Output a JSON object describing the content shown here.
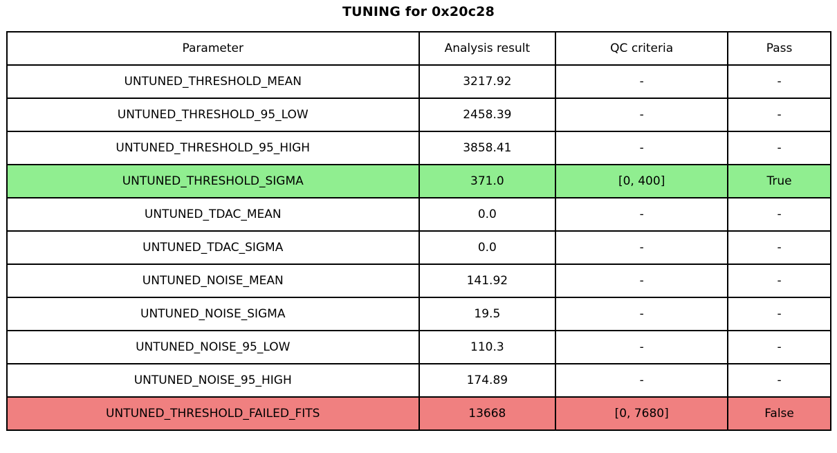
{
  "title": "TUNING for 0x20c28",
  "colors": {
    "pass_row": "#90EE90",
    "fail_row": "#F08080",
    "border": "#000000",
    "background": "#FFFFFF",
    "text": "#000000"
  },
  "chart_data": {
    "type": "table",
    "title": "TUNING for 0x20c28",
    "columns": [
      "Parameter",
      "Analysis result",
      "QC criteria",
      "Pass"
    ],
    "rows": [
      {
        "parameter": "UNTUNED_THRESHOLD_MEAN",
        "result": "3217.92",
        "qc": "-",
        "pass": "-",
        "status": "none"
      },
      {
        "parameter": "UNTUNED_THRESHOLD_95_LOW",
        "result": "2458.39",
        "qc": "-",
        "pass": "-",
        "status": "none"
      },
      {
        "parameter": "UNTUNED_THRESHOLD_95_HIGH",
        "result": "3858.41",
        "qc": "-",
        "pass": "-",
        "status": "none"
      },
      {
        "parameter": "UNTUNED_THRESHOLD_SIGMA",
        "result": "371.0",
        "qc": "[0, 400]",
        "pass": "True",
        "status": "pass"
      },
      {
        "parameter": "UNTUNED_TDAC_MEAN",
        "result": "0.0",
        "qc": "-",
        "pass": "-",
        "status": "none"
      },
      {
        "parameter": "UNTUNED_TDAC_SIGMA",
        "result": "0.0",
        "qc": "-",
        "pass": "-",
        "status": "none"
      },
      {
        "parameter": "UNTUNED_NOISE_MEAN",
        "result": "141.92",
        "qc": "-",
        "pass": "-",
        "status": "none"
      },
      {
        "parameter": "UNTUNED_NOISE_SIGMA",
        "result": "19.5",
        "qc": "-",
        "pass": "-",
        "status": "none"
      },
      {
        "parameter": "UNTUNED_NOISE_95_LOW",
        "result": "110.3",
        "qc": "-",
        "pass": "-",
        "status": "none"
      },
      {
        "parameter": "UNTUNED_NOISE_95_HIGH",
        "result": "174.89",
        "qc": "-",
        "pass": "-",
        "status": "none"
      },
      {
        "parameter": "UNTUNED_THRESHOLD_FAILED_FITS",
        "result": "13668",
        "qc": "[0, 7680]",
        "pass": "False",
        "status": "fail"
      }
    ]
  }
}
